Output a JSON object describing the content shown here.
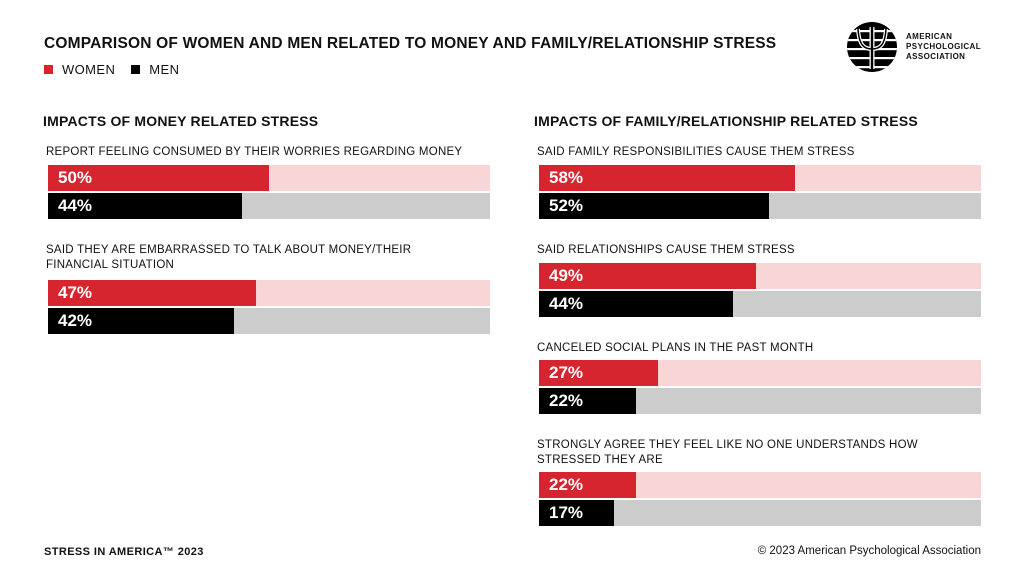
{
  "header": {
    "title": "COMPARISON OF WOMEN AND MEN RELATED TO MONEY AND FAMILY/RELATIONSHIP STRESS"
  },
  "legend": [
    {
      "label": "WOMEN",
      "color": "#d7252f"
    },
    {
      "label": "MEN",
      "color": "#000000"
    }
  ],
  "logo": {
    "lines": [
      "AMERICAN",
      "PSYCHOLOGICAL",
      "ASSOCIATION"
    ]
  },
  "colors": {
    "women": "#d7252f",
    "women_track": "#f8d5d7",
    "men": "#000000",
    "men_track": "#cccccc"
  },
  "chart_data": [
    {
      "type": "bar",
      "title": "IMPACTS OF MONEY RELATED STRESS",
      "series_names": [
        "WOMEN",
        "MEN"
      ],
      "unit": "%",
      "xlim": [
        0,
        100
      ],
      "categories": [
        "REPORT FEELING CONSUMED BY THEIR WORRIES REGARDING MONEY",
        "SAID THEY ARE EMBARRASSED TO TALK ABOUT MONEY/THEIR FINANCIAL SITUATION"
      ],
      "series": [
        {
          "name": "WOMEN",
          "values": [
            50,
            47
          ],
          "labels": [
            "50%",
            "47%"
          ]
        },
        {
          "name": "MEN",
          "values": [
            44,
            42
          ],
          "labels": [
            "44%",
            "42%"
          ]
        }
      ]
    },
    {
      "type": "bar",
      "title": "IMPACTS OF FAMILY/RELATIONSHIP RELATED STRESS",
      "series_names": [
        "WOMEN",
        "MEN"
      ],
      "unit": "%",
      "xlim": [
        0,
        100
      ],
      "categories": [
        "SAID FAMILY RESPONSIBILITIES CAUSE THEM STRESS",
        "SAID RELATIONSHIPS CAUSE THEM STRESS",
        "CANCELED SOCIAL PLANS IN THE PAST MONTH",
        "STRONGLY AGREE THEY FEEL LIKE NO ONE UNDERSTANDS HOW STRESSED THEY ARE"
      ],
      "series": [
        {
          "name": "WOMEN",
          "values": [
            58,
            49,
            27,
            22
          ],
          "labels": [
            "58%",
            "49%",
            "27%",
            "22%"
          ]
        },
        {
          "name": "MEN",
          "values": [
            52,
            44,
            22,
            17
          ],
          "labels": [
            "52%",
            "44%",
            "22%",
            "17%"
          ]
        }
      ]
    }
  ],
  "footer": {
    "left": "STRESS IN AMERICA™ 2023",
    "right": "© 2023 American Psychological Association"
  }
}
